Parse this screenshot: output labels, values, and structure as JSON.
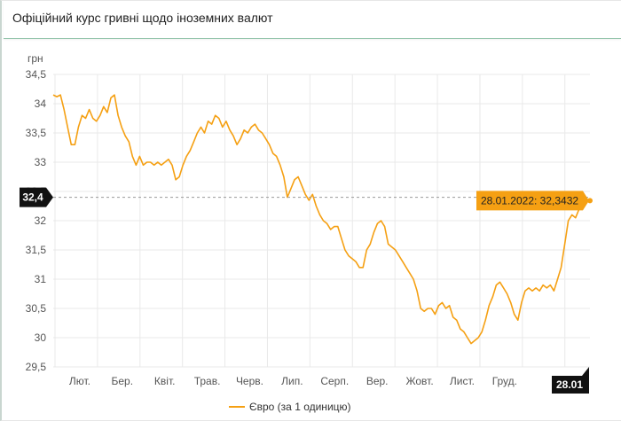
{
  "card": {
    "title": "Офіційний курс гривні щодо іноземних валют"
  },
  "chart_data": {
    "type": "line",
    "title": "",
    "ylabel": "грн",
    "ylim": [
      29.5,
      34.5
    ],
    "yticks": [
      29.5,
      30,
      30.5,
      31,
      31.5,
      32,
      32.5,
      33,
      33.5,
      34,
      34.5
    ],
    "ytick_labels": [
      "29,5",
      "30",
      "30,5",
      "31",
      "31,5",
      "32",
      "32,5",
      "33",
      "33,5",
      "34",
      "34,5"
    ],
    "month_labels": [
      "Лют.",
      "Бер.",
      "Квіт.",
      "Трав.",
      "Черв.",
      "Лип.",
      "Серп.",
      "Вер.",
      "Жовт.",
      "Лист.",
      "Груд."
    ],
    "last_date_label": "28.01",
    "grid": true,
    "series": [
      {
        "name": "Євро (за 1 одиницю)",
        "color": "#f5a013",
        "values": [
          34.15,
          34.12,
          34.15,
          33.9,
          33.6,
          33.3,
          33.3,
          33.6,
          33.8,
          33.75,
          33.9,
          33.75,
          33.7,
          33.8,
          33.95,
          33.85,
          34.1,
          34.15,
          33.8,
          33.6,
          33.45,
          33.35,
          33.1,
          32.95,
          33.1,
          32.95,
          33.0,
          33.0,
          32.95,
          33.0,
          32.95,
          33.0,
          33.05,
          32.95,
          32.7,
          32.75,
          32.95,
          33.1,
          33.2,
          33.35,
          33.5,
          33.6,
          33.5,
          33.7,
          33.65,
          33.8,
          33.75,
          33.6,
          33.7,
          33.55,
          33.45,
          33.3,
          33.4,
          33.55,
          33.5,
          33.6,
          33.65,
          33.55,
          33.5,
          33.4,
          33.3,
          33.15,
          33.1,
          32.95,
          32.75,
          32.4,
          32.55,
          32.7,
          32.75,
          32.6,
          32.45,
          32.35,
          32.45,
          32.25,
          32.1,
          32.0,
          31.95,
          31.85,
          31.9,
          31.9,
          31.7,
          31.5,
          31.4,
          31.35,
          31.3,
          31.2,
          31.2,
          31.5,
          31.6,
          31.8,
          31.95,
          32.0,
          31.9,
          31.6,
          31.55,
          31.5,
          31.4,
          31.3,
          31.2,
          31.1,
          31.0,
          30.8,
          30.5,
          30.45,
          30.5,
          30.5,
          30.4,
          30.55,
          30.6,
          30.5,
          30.55,
          30.35,
          30.3,
          30.15,
          30.1,
          30.0,
          29.9,
          29.95,
          30.0,
          30.1,
          30.3,
          30.55,
          30.7,
          30.9,
          30.95,
          30.85,
          30.75,
          30.6,
          30.4,
          30.3,
          30.6,
          30.8,
          30.85,
          30.8,
          30.85,
          30.8,
          30.9,
          30.85,
          30.9,
          30.8,
          31.0,
          31.2,
          31.6,
          32.0,
          32.1,
          32.05,
          32.2,
          32.25,
          32.3,
          32.35
        ]
      }
    ],
    "tooltip": {
      "text": "28.01.2022: 32,3432",
      "value": 32.3432
    },
    "crosshair_y_label": "32,4",
    "crosshair_value": 32.4
  }
}
